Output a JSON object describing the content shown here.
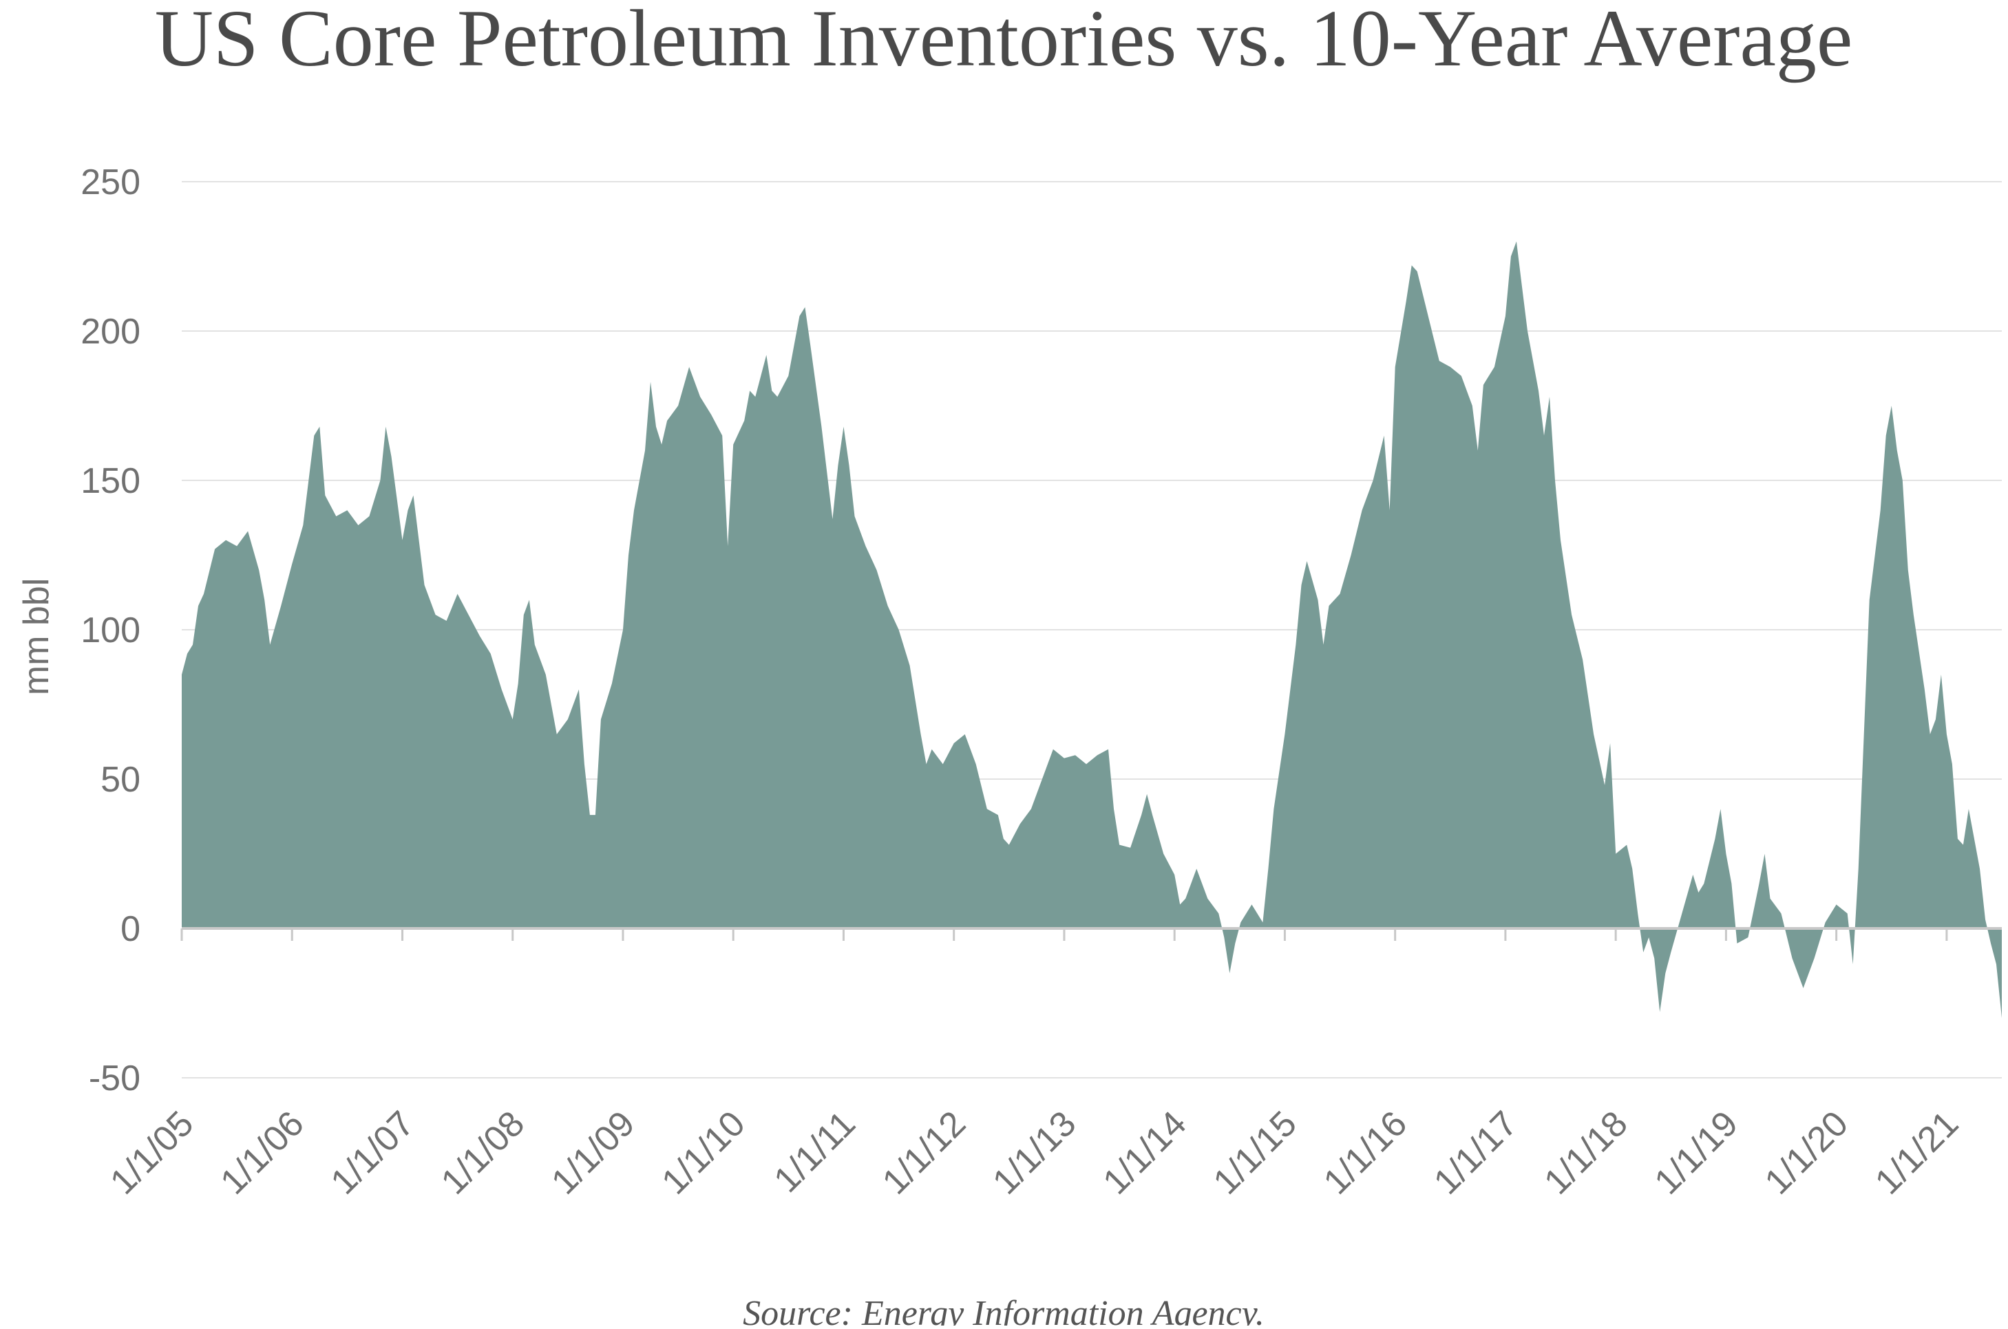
{
  "chart_data": {
    "type": "area",
    "title": "US Core Petroleum Inventories vs. 10-Year Average",
    "y_label": "mm bbl",
    "source": "Source: Energy Information Agency.",
    "color": "#789b96",
    "grid": true,
    "xlim": [
      2005,
      2021.5
    ],
    "ylim": [
      -50,
      250
    ],
    "yticks": [
      -50,
      0,
      50,
      100,
      150,
      200,
      250
    ],
    "xticks": [
      {
        "value": 2005,
        "label": "1/1/05"
      },
      {
        "value": 2006,
        "label": "1/1/06"
      },
      {
        "value": 2007,
        "label": "1/1/07"
      },
      {
        "value": 2008,
        "label": "1/1/08"
      },
      {
        "value": 2009,
        "label": "1/1/09"
      },
      {
        "value": 2010,
        "label": "1/1/10"
      },
      {
        "value": 2011,
        "label": "1/1/11"
      },
      {
        "value": 2012,
        "label": "1/1/12"
      },
      {
        "value": 2013,
        "label": "1/1/13"
      },
      {
        "value": 2014,
        "label": "1/1/14"
      },
      {
        "value": 2015,
        "label": "1/1/15"
      },
      {
        "value": 2016,
        "label": "1/1/16"
      },
      {
        "value": 2017,
        "label": "1/1/17"
      },
      {
        "value": 2018,
        "label": "1/1/18"
      },
      {
        "value": 2019,
        "label": "1/1/19"
      },
      {
        "value": 2020,
        "label": "1/1/20"
      },
      {
        "value": 2021,
        "label": "1/1/21"
      }
    ],
    "x": [
      2005.0,
      2005.05,
      2005.1,
      2005.15,
      2005.2,
      2005.3,
      2005.4,
      2005.5,
      2005.6,
      2005.7,
      2005.75,
      2005.8,
      2005.9,
      2006.0,
      2006.1,
      2006.15,
      2006.2,
      2006.25,
      2006.3,
      2006.4,
      2006.5,
      2006.6,
      2006.7,
      2006.8,
      2006.85,
      2006.9,
      2007.0,
      2007.05,
      2007.1,
      2007.15,
      2007.2,
      2007.3,
      2007.4,
      2007.5,
      2007.6,
      2007.7,
      2007.8,
      2007.9,
      2008.0,
      2008.05,
      2008.1,
      2008.15,
      2008.2,
      2008.3,
      2008.4,
      2008.5,
      2008.6,
      2008.65,
      2008.7,
      2008.75,
      2008.8,
      2008.9,
      2009.0,
      2009.05,
      2009.1,
      2009.2,
      2009.25,
      2009.3,
      2009.35,
      2009.4,
      2009.5,
      2009.6,
      2009.7,
      2009.8,
      2009.9,
      2009.95,
      2010.0,
      2010.1,
      2010.15,
      2010.2,
      2010.3,
      2010.35,
      2010.4,
      2010.5,
      2010.6,
      2010.65,
      2010.7,
      2010.8,
      2010.9,
      2010.95,
      2011.0,
      2011.05,
      2011.1,
      2011.2,
      2011.3,
      2011.4,
      2011.5,
      2011.6,
      2011.7,
      2011.75,
      2011.8,
      2011.9,
      2012.0,
      2012.1,
      2012.2,
      2012.3,
      2012.4,
      2012.45,
      2012.5,
      2012.6,
      2012.7,
      2012.8,
      2012.9,
      2013.0,
      2013.1,
      2013.2,
      2013.3,
      2013.4,
      2013.45,
      2013.5,
      2013.6,
      2013.7,
      2013.75,
      2013.8,
      2013.9,
      2014.0,
      2014.05,
      2014.1,
      2014.2,
      2014.3,
      2014.4,
      2014.45,
      2014.5,
      2014.55,
      2014.6,
      2014.7,
      2014.8,
      2014.85,
      2014.9,
      2015.0,
      2015.1,
      2015.15,
      2015.2,
      2015.3,
      2015.35,
      2015.4,
      2015.5,
      2015.6,
      2015.7,
      2015.8,
      2015.9,
      2015.95,
      2016.0,
      2016.1,
      2016.15,
      2016.2,
      2016.3,
      2016.4,
      2016.5,
      2016.6,
      2016.7,
      2016.75,
      2016.8,
      2016.9,
      2017.0,
      2017.05,
      2017.1,
      2017.15,
      2017.2,
      2017.3,
      2017.35,
      2017.4,
      2017.45,
      2017.5,
      2017.6,
      2017.7,
      2017.8,
      2017.9,
      2017.95,
      2018.0,
      2018.1,
      2018.15,
      2018.2,
      2018.25,
      2018.3,
      2018.35,
      2018.4,
      2018.45,
      2018.5,
      2018.6,
      2018.7,
      2018.75,
      2018.8,
      2018.9,
      2018.95,
      2019.0,
      2019.05,
      2019.1,
      2019.2,
      2019.3,
      2019.35,
      2019.4,
      2019.5,
      2019.6,
      2019.7,
      2019.8,
      2019.9,
      2020.0,
      2020.1,
      2020.15,
      2020.2,
      2020.25,
      2020.3,
      2020.4,
      2020.45,
      2020.5,
      2020.55,
      2020.6,
      2020.65,
      2020.7,
      2020.8,
      2020.85,
      2020.9,
      2020.95,
      2021.0,
      2021.05,
      2021.1,
      2021.15,
      2021.2,
      2021.3,
      2021.35,
      2021.4,
      2021.45,
      2021.5
    ],
    "values": [
      85,
      92,
      95,
      108,
      112,
      127,
      130,
      128,
      133,
      120,
      110,
      95,
      108,
      122,
      135,
      150,
      165,
      168,
      145,
      138,
      140,
      135,
      138,
      150,
      168,
      158,
      130,
      140,
      145,
      130,
      115,
      105,
      103,
      112,
      105,
      98,
      92,
      80,
      70,
      82,
      105,
      110,
      95,
      85,
      65,
      70,
      80,
      55,
      38,
      38,
      70,
      82,
      100,
      125,
      140,
      160,
      183,
      168,
      162,
      170,
      175,
      188,
      178,
      172,
      165,
      128,
      162,
      170,
      180,
      178,
      192,
      180,
      178,
      185,
      205,
      208,
      195,
      168,
      137,
      155,
      168,
      155,
      138,
      128,
      120,
      108,
      100,
      88,
      65,
      55,
      60,
      55,
      62,
      65,
      55,
      40,
      38,
      30,
      28,
      35,
      40,
      50,
      60,
      57,
      58,
      55,
      58,
      60,
      40,
      28,
      27,
      38,
      45,
      38,
      25,
      18,
      8,
      10,
      20,
      10,
      5,
      -3,
      -15,
      -5,
      2,
      8,
      2,
      20,
      40,
      65,
      95,
      115,
      123,
      110,
      95,
      108,
      112,
      125,
      140,
      150,
      165,
      140,
      188,
      210,
      222,
      220,
      205,
      190,
      188,
      185,
      175,
      160,
      182,
      188,
      205,
      225,
      230,
      215,
      200,
      180,
      165,
      178,
      150,
      130,
      105,
      90,
      65,
      48,
      62,
      25,
      28,
      20,
      5,
      -8,
      -3,
      -10,
      -28,
      -15,
      -8,
      5,
      18,
      12,
      15,
      30,
      40,
      25,
      15,
      -5,
      -3,
      15,
      25,
      10,
      5,
      -10,
      -20,
      -10,
      2,
      8,
      5,
      -12,
      20,
      65,
      110,
      140,
      165,
      175,
      160,
      150,
      120,
      105,
      80,
      65,
      70,
      85,
      65,
      55,
      30,
      28,
      40,
      20,
      3,
      -5,
      -12,
      -30
    ]
  }
}
